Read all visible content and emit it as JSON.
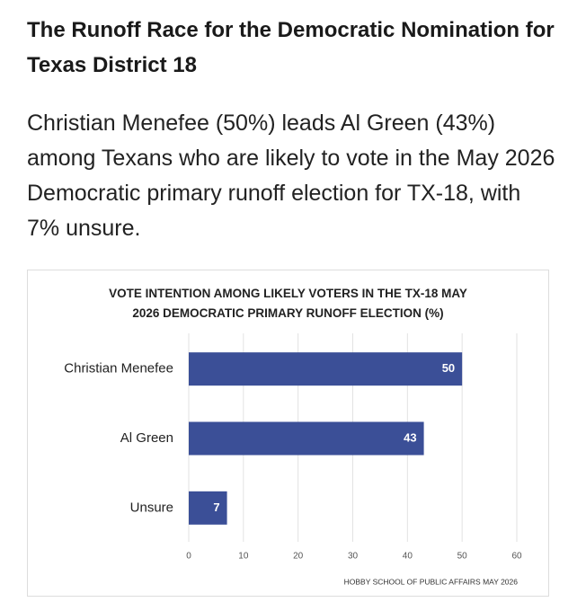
{
  "header": {
    "title": "The Runoff Race for the Democratic Nomination for Texas District 18",
    "paragraph": "Christian Menefee (50%) leads Al Green (43%) among Texans who are likely to vote in the May 2026 Democratic primary runoff election for TX-18, with 7% unsure."
  },
  "chart_data": {
    "type": "bar",
    "orientation": "horizontal",
    "title": "VOTE INTENTION AMONG LIKELY VOTERS IN THE TX-18 MAY 2026 DEMOCRATIC PRIMARY RUNOFF ELECTION (%)",
    "categories": [
      "Christian Menefee",
      "Al Green",
      "Unsure"
    ],
    "values": [
      50,
      43,
      7
    ],
    "color": "#3b4f97",
    "xlim": [
      0,
      60
    ],
    "xticks": [
      0,
      10,
      20,
      30,
      40,
      50,
      60
    ],
    "grid": true,
    "source": "HOBBY SCHOOL OF PUBLIC AFFAIRS MAY 2026"
  }
}
